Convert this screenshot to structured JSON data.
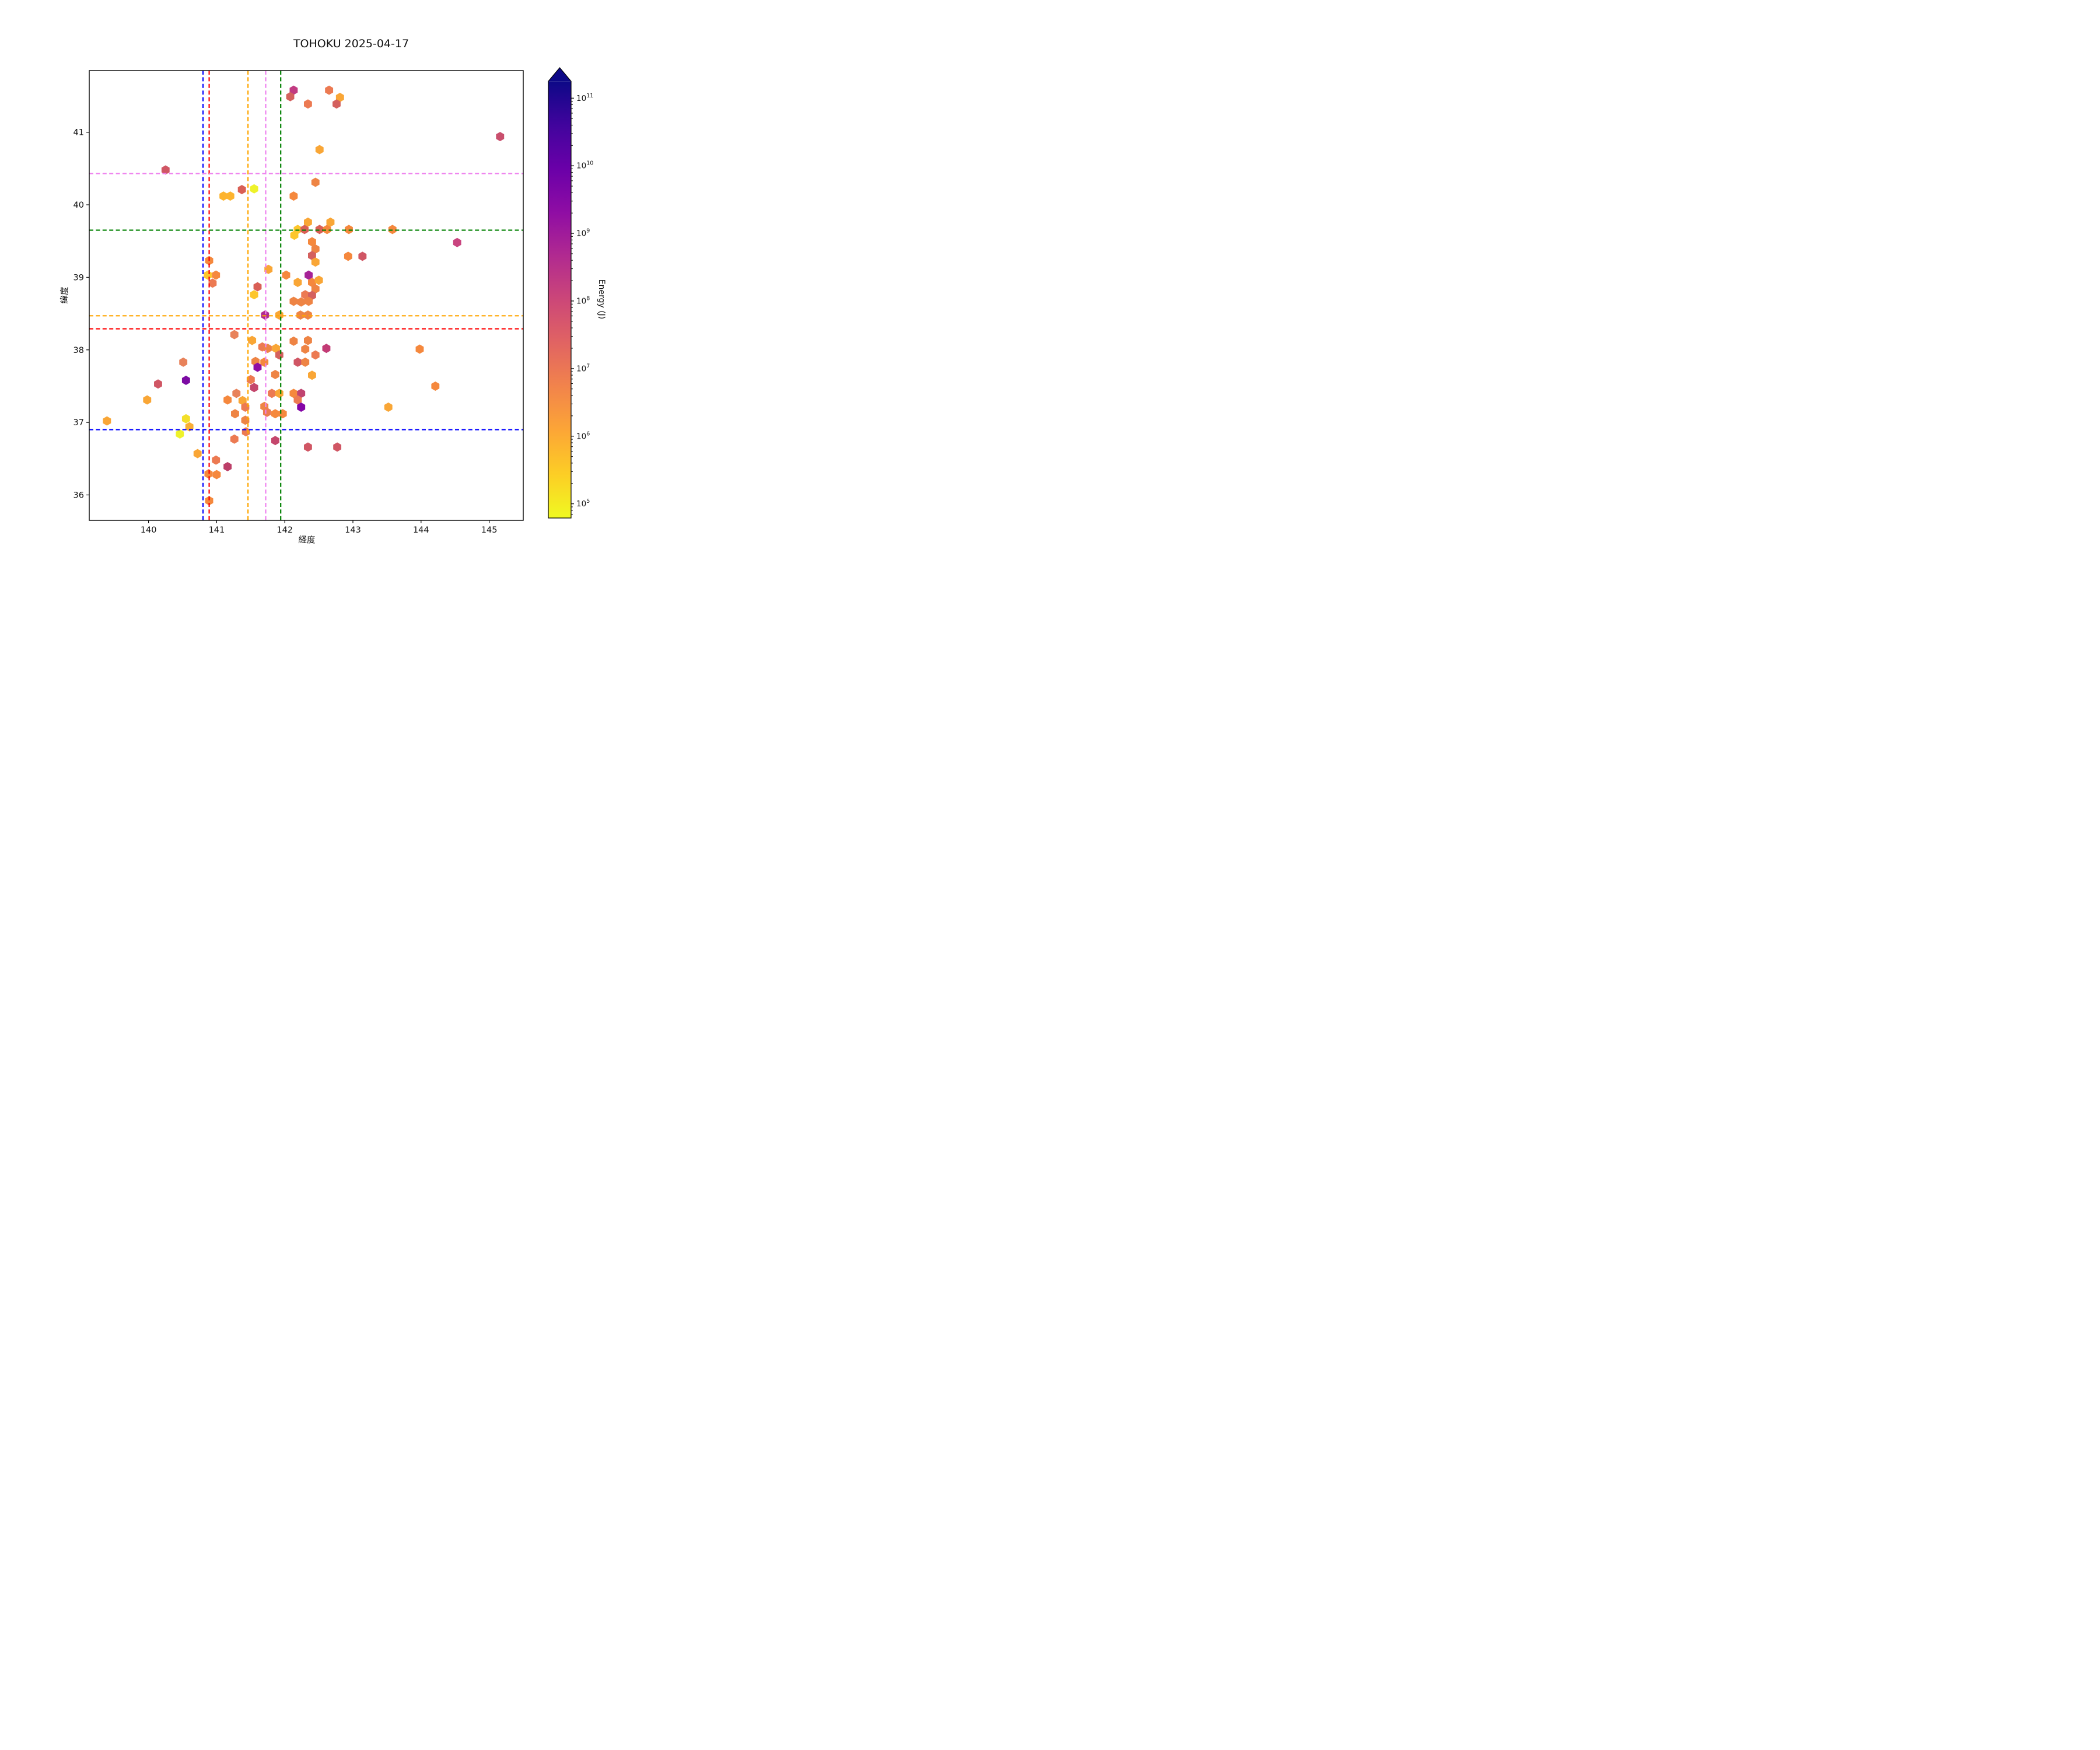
{
  "chart_data": {
    "type": "scatter",
    "marker": "hexagon",
    "title": "TOHOKU 2025-04-17",
    "xlabel": "経度",
    "ylabel": "緯度",
    "xlim": [
      139.13,
      145.5
    ],
    "ylim": [
      35.65,
      41.85
    ],
    "xticks": [
      140,
      141,
      142,
      143,
      144,
      145
    ],
    "yticks": [
      36,
      37,
      38,
      39,
      40,
      41
    ],
    "grid": false,
    "legend": "none",
    "colorbar": {
      "label": "Energy (J)",
      "scale": "log",
      "tick_exponents": [
        11,
        10,
        9,
        8,
        7,
        6,
        5
      ],
      "range_exponents": [
        4.79,
        11.25
      ],
      "colormap": "plasma_r",
      "extend": "max",
      "stops": [
        {
          "t": "0",
          "c": "#0d0887"
        },
        {
          "t": "0.1",
          "c": "#41049d"
        },
        {
          "t": "0.2",
          "c": "#6a00a8"
        },
        {
          "t": "0.3",
          "c": "#8f0da4"
        },
        {
          "t": "0.4",
          "c": "#b12a90"
        },
        {
          "t": "0.5",
          "c": "#cc4778"
        },
        {
          "t": "0.6",
          "c": "#e16462"
        },
        {
          "t": "0.7",
          "c": "#f2844b"
        },
        {
          "t": "0.8",
          "c": "#fca636"
        },
        {
          "t": "0.9",
          "c": "#fcce25"
        },
        {
          "t": "1",
          "c": "#f0f921"
        }
      ]
    },
    "crosshairs": [
      {
        "name": "blue",
        "color": "#0000ff",
        "lon": 140.8,
        "lat": 36.9
      },
      {
        "name": "red",
        "color": "#ff0000",
        "lon": 140.89,
        "lat": 38.29
      },
      {
        "name": "orange",
        "color": "#ffa500",
        "lon": 141.46,
        "lat": 38.47
      },
      {
        "name": "violet",
        "color": "#ee82ee",
        "lon": 141.72,
        "lat": 40.43
      },
      {
        "name": "green",
        "color": "#008000",
        "lon": 141.94,
        "lat": 39.65
      }
    ],
    "points": [
      [
        142.13,
        41.58,
        "#c13b82"
      ],
      [
        142.08,
        41.49,
        "#d4605e"
      ],
      [
        142.34,
        41.39,
        "#ec7a52"
      ],
      [
        142.65,
        41.58,
        "#ec7a52"
      ],
      [
        142.81,
        41.48,
        "#f9a636"
      ],
      [
        142.76,
        41.39,
        "#d4605e"
      ],
      [
        145.16,
        40.94,
        "#c94f6d"
      ],
      [
        142.51,
        40.76,
        "#f9a636"
      ],
      [
        140.25,
        40.48,
        "#d05664"
      ],
      [
        142.45,
        40.31,
        "#ee8444"
      ],
      [
        141.37,
        40.21,
        "#d95f55"
      ],
      [
        141.55,
        40.22,
        "#eef22a"
      ],
      [
        141.1,
        40.12,
        "#fdb42f"
      ],
      [
        141.2,
        40.12,
        "#fdb42f"
      ],
      [
        142.13,
        40.12,
        "#f5883d"
      ],
      [
        142.34,
        39.76,
        "#f9a636"
      ],
      [
        142.67,
        39.76,
        "#f9a636"
      ],
      [
        142.19,
        39.66,
        "#fdc62c"
      ],
      [
        142.29,
        39.66,
        "#d95f55"
      ],
      [
        142.51,
        39.66,
        "#d95f55"
      ],
      [
        142.62,
        39.66,
        "#f5883d"
      ],
      [
        142.94,
        39.66,
        "#f5883d"
      ],
      [
        143.58,
        39.66,
        "#f5883d"
      ],
      [
        142.14,
        39.58,
        "#fdc62c"
      ],
      [
        142.4,
        39.49,
        "#f5883d"
      ],
      [
        144.53,
        39.48,
        "#c9447f"
      ],
      [
        142.45,
        39.39,
        "#ee8444"
      ],
      [
        142.4,
        39.3,
        "#d4605e"
      ],
      [
        142.93,
        39.29,
        "#f5883d"
      ],
      [
        143.14,
        39.29,
        "#d05664"
      ],
      [
        140.89,
        39.23,
        "#f5883d"
      ],
      [
        142.45,
        39.21,
        "#f9a636"
      ],
      [
        141.76,
        39.11,
        "#f9a636"
      ],
      [
        140.87,
        39.03,
        "#fdc62c"
      ],
      [
        140.99,
        39.03,
        "#f5883d"
      ],
      [
        142.02,
        39.03,
        "#f5883d"
      ],
      [
        142.35,
        39.03,
        "#a62296"
      ],
      [
        140.94,
        38.92,
        "#ec7a52"
      ],
      [
        142.19,
        38.93,
        "#f9a636"
      ],
      [
        142.4,
        38.93,
        "#f5883d"
      ],
      [
        142.5,
        38.96,
        "#f9a636"
      ],
      [
        141.6,
        38.87,
        "#d95f55"
      ],
      [
        142.45,
        38.84,
        "#ee8444"
      ],
      [
        141.55,
        38.76,
        "#fdc62c"
      ],
      [
        142.3,
        38.76,
        "#ec7a52"
      ],
      [
        142.4,
        38.75,
        "#d4605e"
      ],
      [
        142.13,
        38.67,
        "#ee8444"
      ],
      [
        142.24,
        38.66,
        "#ee8444"
      ],
      [
        142.35,
        38.67,
        "#ee8444"
      ],
      [
        141.71,
        38.48,
        "#b12b90"
      ],
      [
        141.92,
        38.48,
        "#f9a636"
      ],
      [
        142.23,
        38.48,
        "#ee8444"
      ],
      [
        142.34,
        38.48,
        "#ee8444"
      ],
      [
        141.26,
        38.21,
        "#e8825a"
      ],
      [
        141.52,
        38.13,
        "#f9a636"
      ],
      [
        142.13,
        38.12,
        "#ee8444"
      ],
      [
        142.34,
        38.13,
        "#ee8444"
      ],
      [
        141.67,
        38.04,
        "#ec7a52"
      ],
      [
        141.75,
        38.02,
        "#ee8444"
      ],
      [
        141.87,
        38.02,
        "#f9a636"
      ],
      [
        142.3,
        38.01,
        "#ee8444"
      ],
      [
        142.61,
        38.02,
        "#c23b75"
      ],
      [
        143.98,
        38.01,
        "#f5883d"
      ],
      [
        141.92,
        37.93,
        "#d4605e"
      ],
      [
        142.45,
        37.93,
        "#ec7a52"
      ],
      [
        142.19,
        37.83,
        "#d05664"
      ],
      [
        142.3,
        37.83,
        "#ee8444"
      ],
      [
        140.51,
        37.83,
        "#e8825a"
      ],
      [
        141.57,
        37.84,
        "#ee8444"
      ],
      [
        141.7,
        37.83,
        "#f5883d"
      ],
      [
        141.6,
        37.76,
        "#8f0da4"
      ],
      [
        141.86,
        37.66,
        "#ee8444"
      ],
      [
        142.4,
        37.65,
        "#f9a636"
      ],
      [
        141.5,
        37.59,
        "#ec7a52"
      ],
      [
        140.55,
        37.58,
        "#7c0ba3"
      ],
      [
        140.14,
        37.53,
        "#d05664"
      ],
      [
        141.55,
        37.48,
        "#c4466c"
      ],
      [
        144.21,
        37.5,
        "#f5883d"
      ],
      [
        141.29,
        37.4,
        "#e8825a"
      ],
      [
        141.81,
        37.4,
        "#ec7a52"
      ],
      [
        141.92,
        37.4,
        "#f9a636"
      ],
      [
        142.13,
        37.4,
        "#f5883d"
      ],
      [
        142.24,
        37.4,
        "#c04470"
      ],
      [
        139.98,
        37.31,
        "#f9a636"
      ],
      [
        141.16,
        37.31,
        "#f5883d"
      ],
      [
        141.38,
        37.3,
        "#f9a636"
      ],
      [
        142.19,
        37.31,
        "#ec7a52"
      ],
      [
        141.42,
        37.21,
        "#ec7a52"
      ],
      [
        141.7,
        37.22,
        "#ee8444"
      ],
      [
        142.24,
        37.21,
        "#8405a7"
      ],
      [
        143.52,
        37.21,
        "#f9a636"
      ],
      [
        141.74,
        37.14,
        "#ec7a52"
      ],
      [
        141.27,
        37.12,
        "#ee8444"
      ],
      [
        141.86,
        37.12,
        "#f5883d"
      ],
      [
        141.97,
        37.12,
        "#f5883d"
      ],
      [
        140.55,
        37.05,
        "#f3df2a"
      ],
      [
        139.39,
        37.02,
        "#f9a636"
      ],
      [
        141.42,
        37.03,
        "#ee8444"
      ],
      [
        140.6,
        36.94,
        "#f9ae35"
      ],
      [
        140.46,
        36.84,
        "#eef22b"
      ],
      [
        141.43,
        36.87,
        "#ec7a52"
      ],
      [
        141.26,
        36.77,
        "#ec7a52"
      ],
      [
        141.86,
        36.75,
        "#c4466c"
      ],
      [
        142.34,
        36.66,
        "#d05664"
      ],
      [
        142.77,
        36.66,
        "#d05664"
      ],
      [
        140.72,
        36.57,
        "#f9a636"
      ],
      [
        140.99,
        36.48,
        "#ec7a52"
      ],
      [
        141.16,
        36.39,
        "#bc3e68"
      ],
      [
        140.88,
        36.29,
        "#f5883d"
      ],
      [
        141.0,
        36.28,
        "#f5883d"
      ],
      [
        140.89,
        35.92,
        "#f5883d"
      ]
    ]
  }
}
